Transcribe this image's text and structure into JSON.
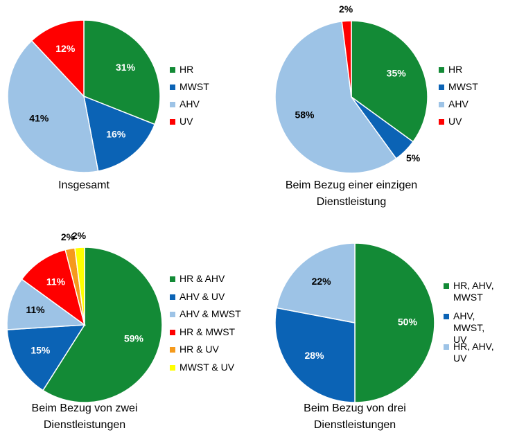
{
  "chart_data": [
    {
      "type": "pie",
      "title": "Insgesamt",
      "categories": [
        "HR",
        "MWST",
        "AHV",
        "UV"
      ],
      "values": [
        31,
        16,
        41,
        12
      ],
      "value_labels": [
        "31%",
        "16%",
        "41%",
        "12%"
      ],
      "colors": [
        "#138a36",
        "#0b63b5",
        "#9dc3e6",
        "#ff0000"
      ]
    },
    {
      "type": "pie",
      "title": "Beim Bezug einer einzigen Dienstleistung",
      "categories": [
        "HR",
        "MWST",
        "AHV",
        "UV"
      ],
      "values": [
        35,
        5,
        58,
        2
      ],
      "value_labels": [
        "35%",
        "5%",
        "58%",
        "2%"
      ],
      "colors": [
        "#138a36",
        "#0b63b5",
        "#9dc3e6",
        "#ff0000"
      ]
    },
    {
      "type": "pie",
      "title": "Beim Bezug von zwei Dienstleistungen",
      "categories": [
        "HR & AHV",
        "AHV & UV",
        "AHV & MWST",
        "HR & MWST",
        "HR & UV",
        "MWST & UV"
      ],
      "values": [
        59,
        15,
        11,
        11,
        2,
        2
      ],
      "value_labels": [
        "59%",
        "15%",
        "11%",
        "11%",
        "2%",
        "2%"
      ],
      "colors": [
        "#138a36",
        "#0b63b5",
        "#9dc3e6",
        "#ff0000",
        "#f59a1c",
        "#ffff00"
      ]
    },
    {
      "type": "pie",
      "title": "Beim Bezug von drei Dienstleistungen",
      "categories": [
        "HR, AHV, MWST",
        "AHV, MWST, UV",
        "HR, AHV, UV"
      ],
      "values": [
        50,
        28,
        22
      ],
      "value_labels": [
        "50%",
        "28%",
        "22%"
      ],
      "colors": [
        "#138a36",
        "#0b63b5",
        "#9dc3e6"
      ]
    }
  ]
}
